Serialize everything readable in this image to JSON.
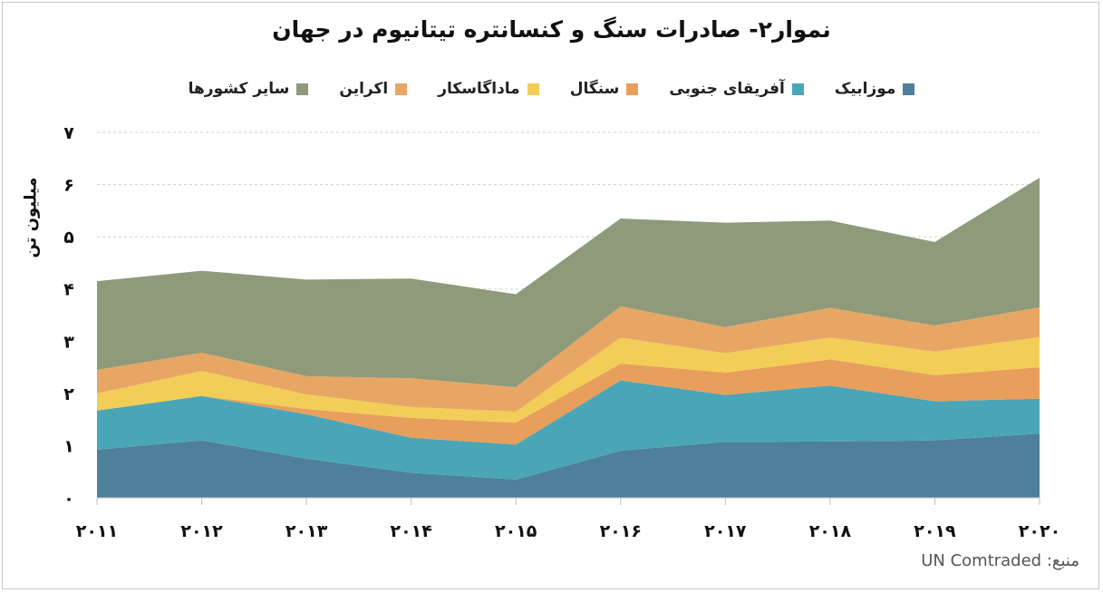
{
  "chart_data": {
    "type": "area",
    "stacked": true,
    "title": "نموار۲- صادرات سنگ و کنسانتره تیتانیوم در جهان",
    "ylabel": "میلیون تن",
    "xlabel": "",
    "x": [
      "۲۰۱۱",
      "۲۰۱۲",
      "۲۰۱۳",
      "۲۰۱۴",
      "۲۰۱۵",
      "۲۰۱۶",
      "۲۰۱۷",
      "۲۰۱۸",
      "۲۰۱۹",
      "۲۰۲۰"
    ],
    "ylim": [
      0,
      7
    ],
    "yticks": [
      "۰",
      "۱",
      "۲",
      "۳",
      "۴",
      "۵",
      "۶",
      "۷"
    ],
    "grid": true,
    "legend_position": "top",
    "series": [
      {
        "name": "موزابیک",
        "color": "#4e7f9b",
        "values": [
          0.92,
          1.1,
          0.75,
          0.48,
          0.35,
          0.9,
          1.07,
          1.08,
          1.1,
          1.23
        ]
      },
      {
        "name": "آفریقای جنوبی",
        "color": "#4aa6b6",
        "values": [
          0.75,
          0.85,
          0.85,
          0.67,
          0.67,
          1.35,
          0.9,
          1.07,
          0.75,
          0.67
        ]
      },
      {
        "name": "سنگال",
        "color": "#e89f5c",
        "values": [
          0.0,
          0.0,
          0.1,
          0.38,
          0.42,
          0.32,
          0.43,
          0.5,
          0.5,
          0.6
        ]
      },
      {
        "name": "ماداگاسکار",
        "color": "#f2cd58",
        "values": [
          0.33,
          0.48,
          0.28,
          0.21,
          0.21,
          0.5,
          0.37,
          0.42,
          0.45,
          0.58
        ]
      },
      {
        "name": "اکراین",
        "color": "#e8a664",
        "values": [
          0.45,
          0.35,
          0.35,
          0.55,
          0.47,
          0.6,
          0.5,
          0.57,
          0.5,
          0.57
        ]
      },
      {
        "name": "سایر کشورها",
        "color": "#8e9a7a",
        "values": [
          1.7,
          1.57,
          1.85,
          1.91,
          1.78,
          1.68,
          2.0,
          1.67,
          1.6,
          2.48
        ]
      }
    ]
  },
  "source": {
    "label": "منبع:",
    "value": "UN Comtraded"
  }
}
